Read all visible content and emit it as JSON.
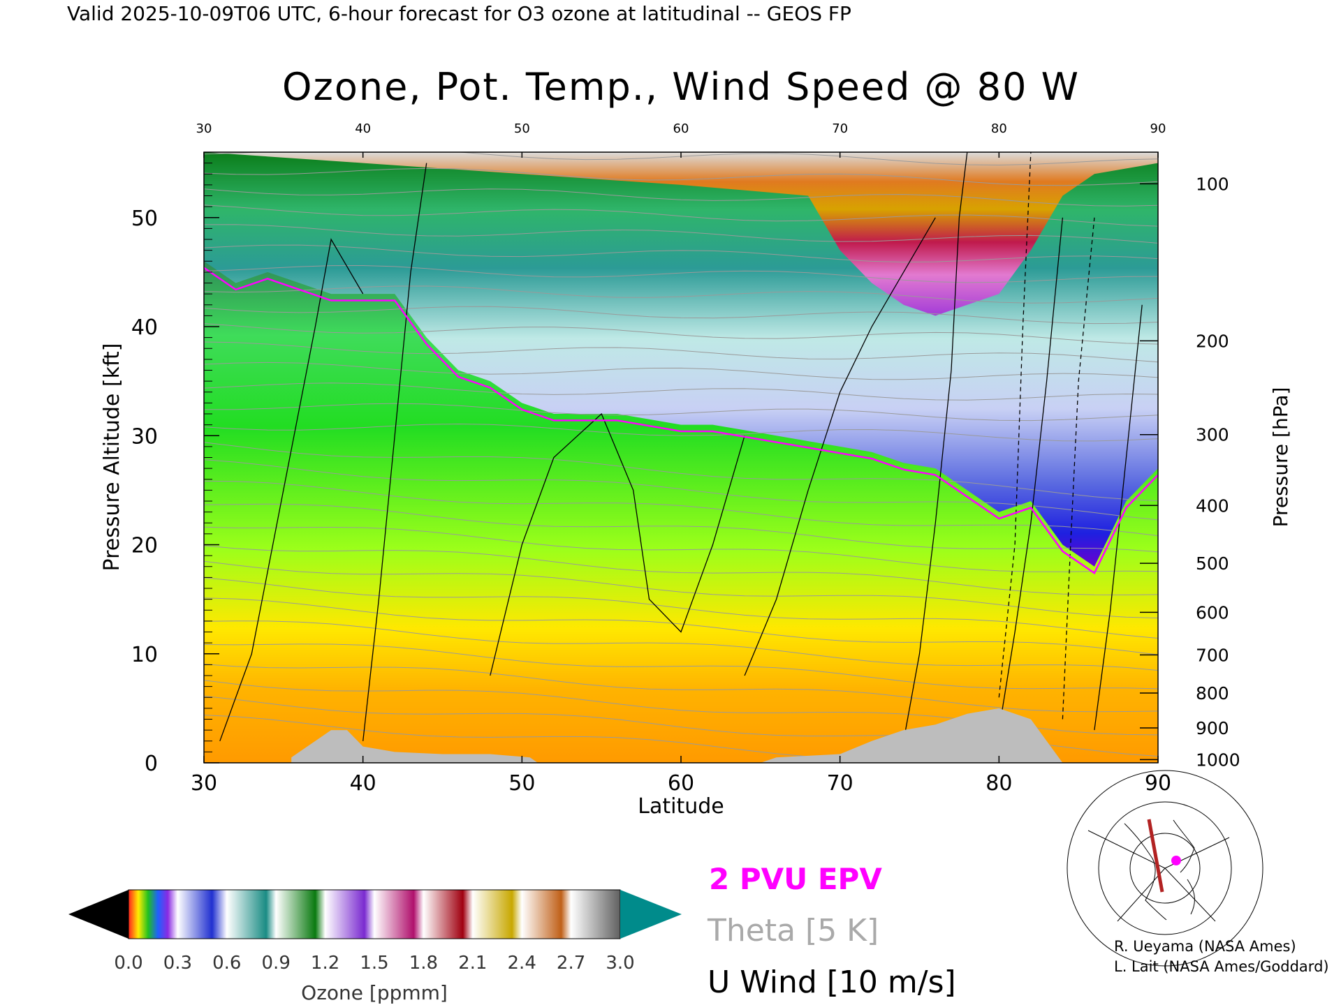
{
  "header": {
    "valid_line": "Valid 2025-10-09T06 UTC, 6-hour forecast for O3 ozone at latitudinal -- GEOS FP"
  },
  "chart_data": {
    "type": "heatmap",
    "title": "Ozone, Pot. Temp., Wind Speed @ 80 W",
    "xlabel": "Latitude",
    "ylabel_left": "Pressure Altitude [kft]",
    "ylabel_right": "Pressure [hPa]",
    "xlim": [
      30,
      90
    ],
    "ylim_kft": [
      0,
      56
    ],
    "x_ticks": [
      "30",
      "40",
      "50",
      "60",
      "70",
      "80",
      "90"
    ],
    "y_ticks_kft": [
      "0",
      "10",
      "20",
      "30",
      "40",
      "50"
    ],
    "pressure_ticks": [
      {
        "hPa": "100",
        "kft": 53.1
      },
      {
        "hPa": "200",
        "kft": 38.7
      },
      {
        "hPa": "300",
        "kft": 30.1
      },
      {
        "hPa": "400",
        "kft": 23.6
      },
      {
        "hPa": "500",
        "kft": 18.3
      },
      {
        "hPa": "600",
        "kft": 13.8
      },
      {
        "hPa": "700",
        "kft": 9.9
      },
      {
        "hPa": "800",
        "kft": 6.4
      },
      {
        "hPa": "900",
        "kft": 3.2
      },
      {
        "hPa": "1000",
        "kft": 0.3
      }
    ],
    "tropopause_kft": [
      [
        30,
        46
      ],
      [
        32,
        44
      ],
      [
        34,
        45
      ],
      [
        36,
        44
      ],
      [
        38,
        43
      ],
      [
        40,
        43
      ],
      [
        42,
        43
      ],
      [
        44,
        39
      ],
      [
        46,
        36
      ],
      [
        48,
        35
      ],
      [
        50,
        33
      ],
      [
        52,
        32
      ],
      [
        54,
        32
      ],
      [
        56,
        32
      ],
      [
        58,
        31.5
      ],
      [
        60,
        31
      ],
      [
        62,
        31
      ],
      [
        64,
        30.5
      ],
      [
        66,
        30
      ],
      [
        68,
        29.5
      ],
      [
        70,
        29
      ],
      [
        72,
        28.5
      ],
      [
        74,
        27.5
      ],
      [
        76,
        27
      ],
      [
        78,
        25
      ],
      [
        80,
        23
      ],
      [
        82,
        24
      ],
      [
        84,
        20
      ],
      [
        86,
        18
      ],
      [
        88,
        24
      ],
      [
        90,
        27
      ]
    ],
    "stratosphere_top_kft": [
      [
        30,
        56
      ],
      [
        40,
        55
      ],
      [
        50,
        54
      ],
      [
        60,
        53
      ],
      [
        68,
        52
      ],
      [
        70,
        47
      ],
      [
        72,
        44
      ],
      [
        74,
        42
      ],
      [
        76,
        41
      ],
      [
        78,
        42
      ],
      [
        80,
        43
      ],
      [
        82,
        47
      ],
      [
        84,
        52
      ],
      [
        86,
        54
      ],
      [
        90,
        55
      ]
    ],
    "topography_kft": [
      [
        35.5,
        0.5
      ],
      [
        36,
        1
      ],
      [
        37,
        2
      ],
      [
        38,
        3
      ],
      [
        39,
        3
      ],
      [
        40,
        1.5
      ],
      [
        42,
        1
      ],
      [
        45,
        0.8
      ],
      [
        48,
        0.8
      ],
      [
        50.5,
        0.5
      ],
      [
        51,
        0
      ],
      [
        65,
        0
      ],
      [
        66,
        0.5
      ],
      [
        70,
        0.8
      ],
      [
        72,
        2
      ],
      [
        74,
        3
      ],
      [
        76,
        3.5
      ],
      [
        78,
        4.5
      ],
      [
        80,
        5
      ],
      [
        82,
        4
      ],
      [
        83,
        2
      ],
      [
        84,
        0
      ]
    ],
    "theta_contours_K": [
      "310",
      "320",
      "330",
      "340",
      "350",
      "360",
      "370",
      "380",
      "390",
      "400",
      "410"
    ],
    "u_wind_contours_ms": [
      "-10",
      "0",
      "10"
    ],
    "epv_contour_pvu": "2"
  },
  "legend": {
    "epv": "2 PVU EPV",
    "theta": "Theta [5 K]",
    "uwind": "U Wind [10 m/s]"
  },
  "colorbar": {
    "label": "Ozone [ppmm]",
    "ticks": [
      "0.0",
      "0.3",
      "0.6",
      "0.9",
      "1.2",
      "1.5",
      "1.8",
      "2.1",
      "2.4",
      "2.7",
      "3.0"
    ],
    "colors": [
      "#000000",
      "#008b8b"
    ]
  },
  "credits": {
    "line1": "R. Ueyama (NASA Ames)",
    "line2": "L. Lait (NASA Ames/Goddard)"
  }
}
